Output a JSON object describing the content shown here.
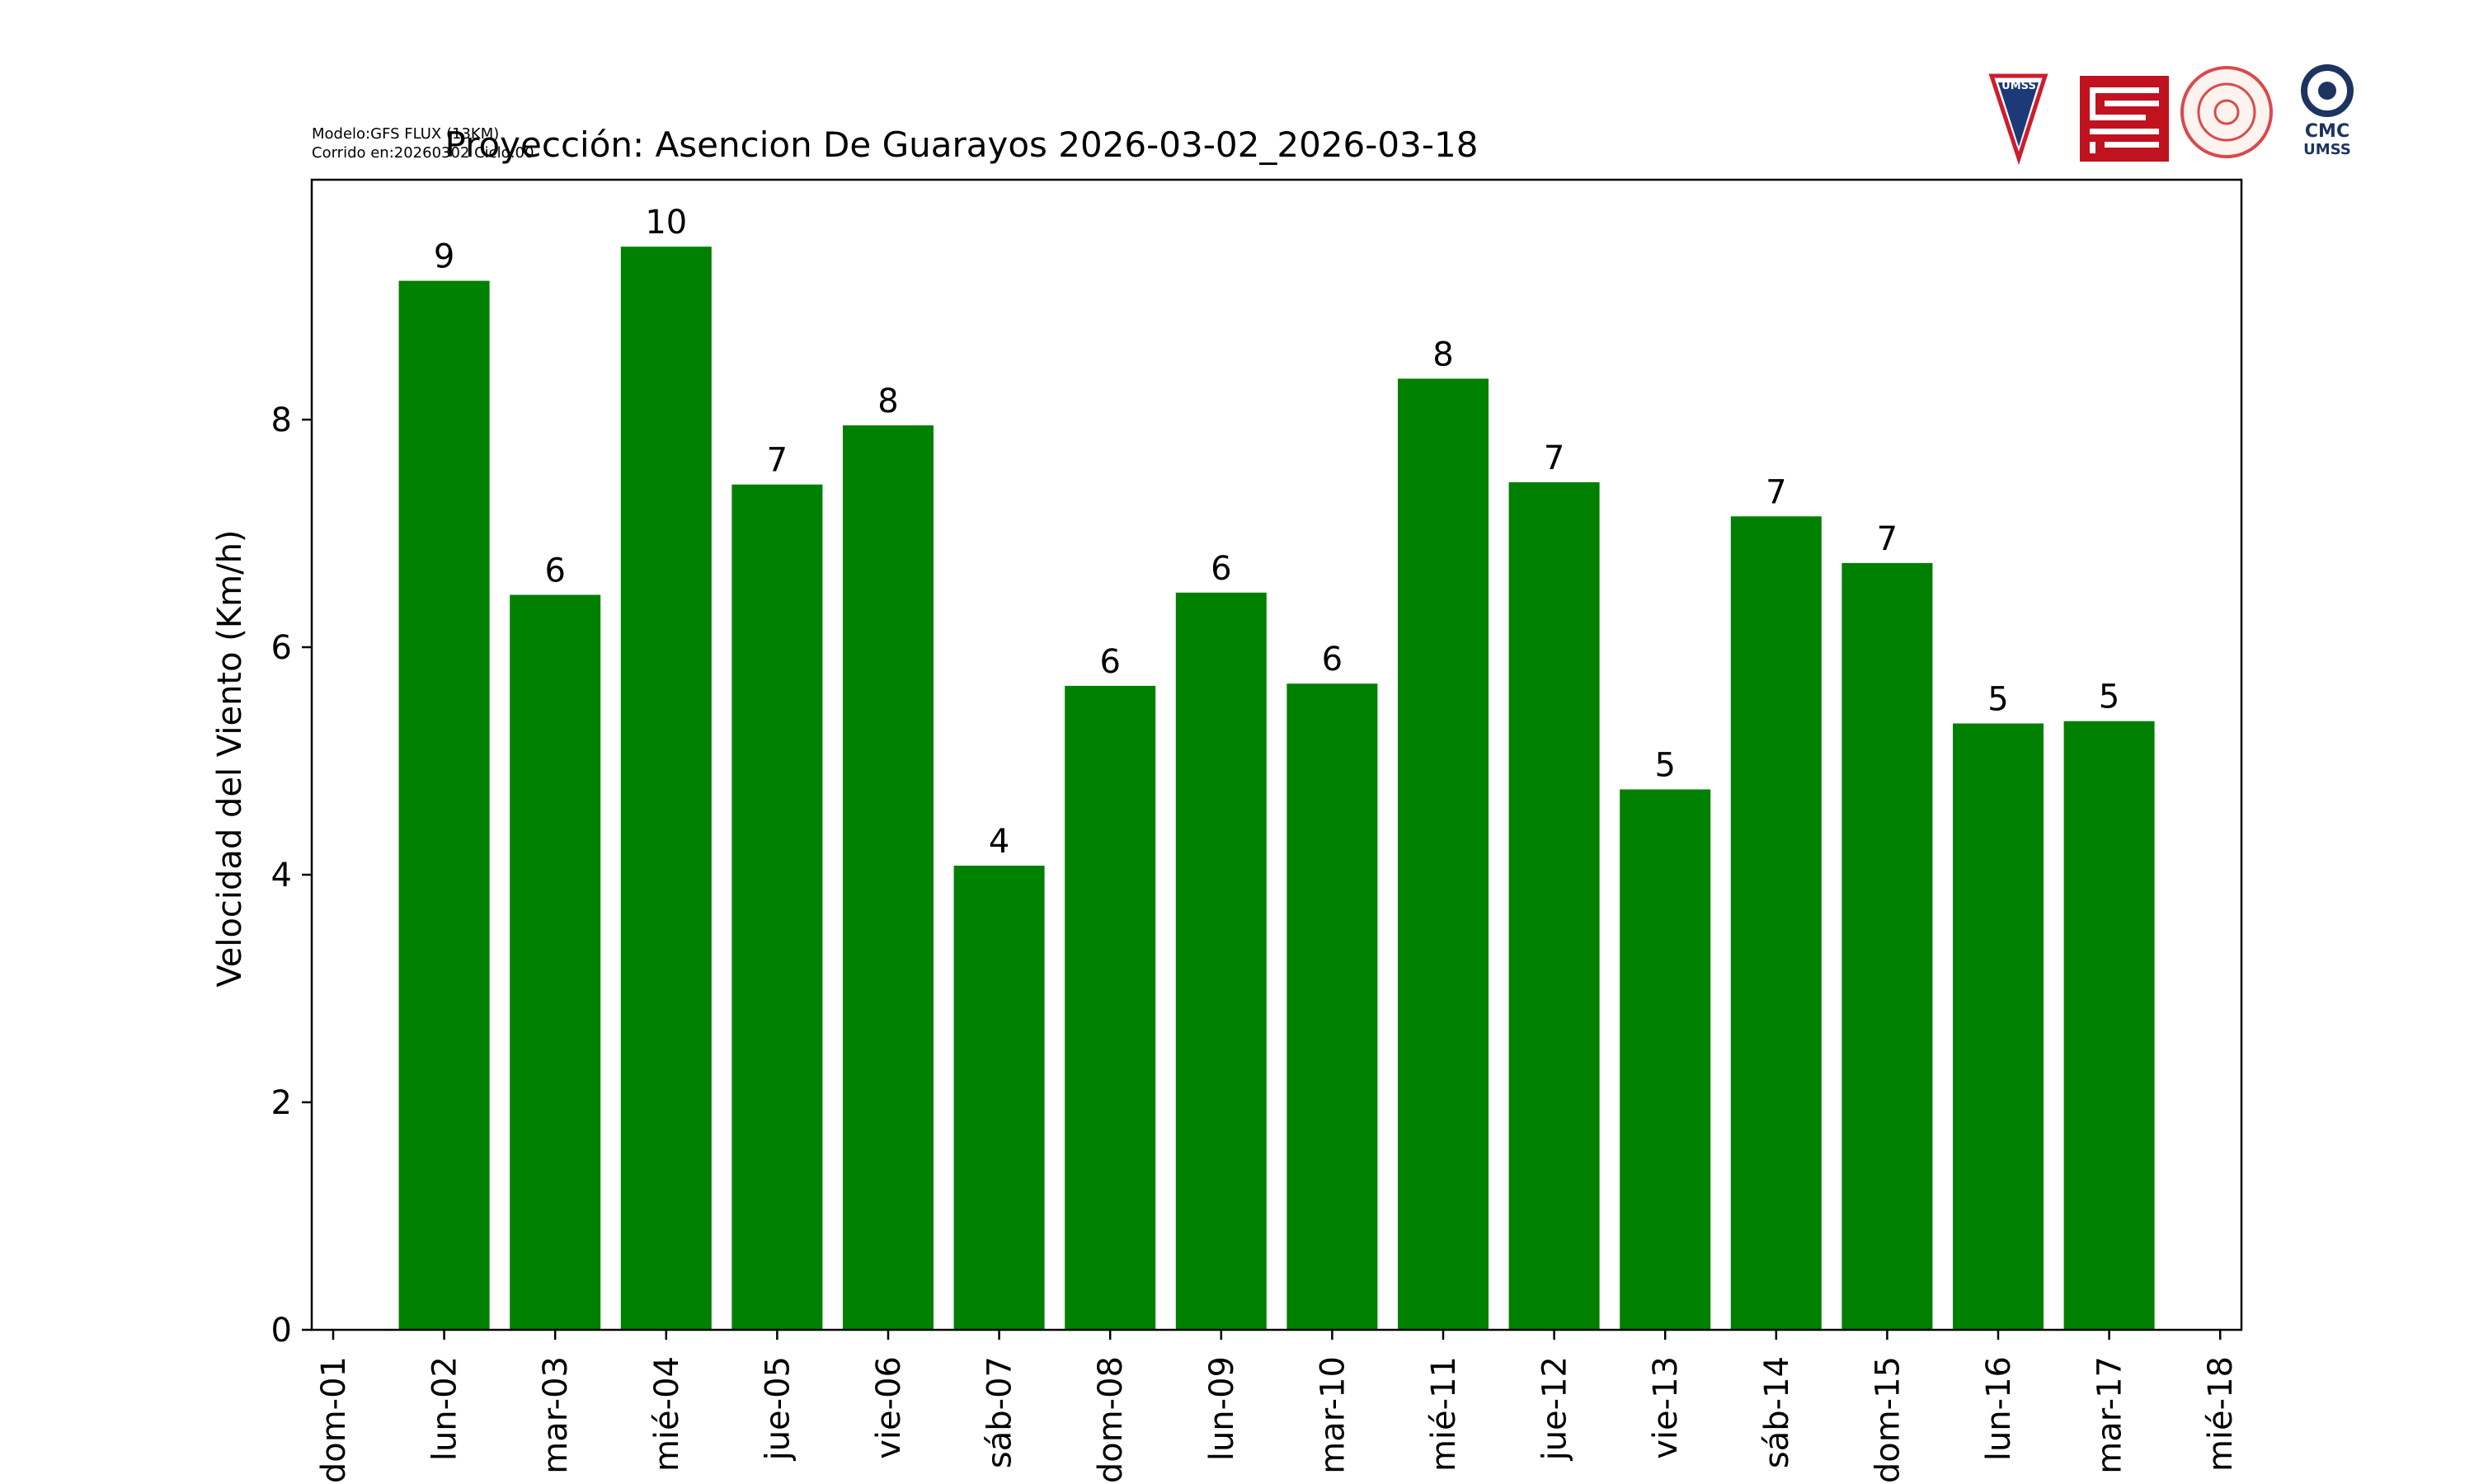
{
  "model_info": {
    "line1": "Modelo:GFS FLUX (13KM)",
    "line2": "Corrido en:20260302 Ciclo:00"
  },
  "logos": {
    "umss_text": "UMSS",
    "cmc_text": "CMC",
    "cmc_sub": "UMSS"
  },
  "colors": {
    "bar": "#008000",
    "umss_red": "#cc1e2e",
    "umss_blue": "#1c3a78",
    "fcyt_red": "#c1121f",
    "seal_red": "#d94a4a",
    "cmc_navy": "#1d3461"
  },
  "chart_data": {
    "type": "bar",
    "title": "Proyección: Asencion De Guarayos  2026-03-02_2026-03-18",
    "xlabel": "",
    "ylabel": "Velocidad del Viento (Km/h)",
    "ylim": [
      0,
      10
    ],
    "yticks": [
      0,
      2,
      4,
      6,
      8
    ],
    "xticks": [
      "dom-01",
      "lun-02",
      "mar-03",
      "mié-04",
      "jue-05",
      "vie-06",
      "sáb-07",
      "dom-08",
      "lun-09",
      "mar-10",
      "mié-11",
      "jue-12",
      "vie-13",
      "sáb-14",
      "dom-15",
      "lun-16",
      "mar-17",
      "mié-18"
    ],
    "categories": [
      "lun-02",
      "mar-03",
      "mié-04",
      "jue-05",
      "vie-06",
      "sáb-07",
      "dom-08",
      "lun-09",
      "mar-10",
      "mié-11",
      "jue-12",
      "vie-13",
      "sáb-14",
      "dom-15",
      "lun-16",
      "mar-17"
    ],
    "values": [
      9.22,
      6.46,
      9.52,
      7.43,
      7.95,
      4.08,
      5.66,
      6.48,
      5.68,
      8.36,
      7.45,
      4.75,
      7.15,
      6.74,
      5.33,
      5.35
    ],
    "data_labels": [
      "9",
      "6",
      "10",
      "7",
      "8",
      "4",
      "6",
      "6",
      "6",
      "8",
      "7",
      "5",
      "7",
      "7",
      "5",
      "5"
    ],
    "grid": false,
    "legend": "none"
  }
}
